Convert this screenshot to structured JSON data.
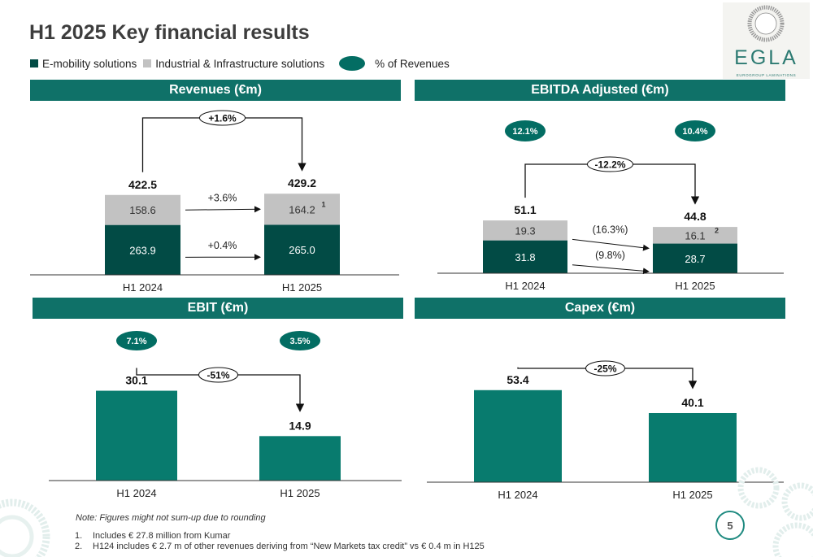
{
  "page": {
    "title": "H1 2025 Key financial results",
    "legend": {
      "emobility": "E-mobility solutions",
      "industrial": "Industrial & Infrastructure solutions",
      "pct": "% of Revenues"
    },
    "logo": {
      "text": "EGLA",
      "subtitle": "EUROGROUP LAMINATIONS"
    },
    "note": "Note: Figures might not sum-up due to rounding",
    "footnotes": [
      {
        "num": "1.",
        "text": "Includes € 27.8 million from Kumar"
      },
      {
        "num": "2.",
        "text": "H124 includes € 2.7 m of other revenues deriving from “New Markets tax credit” vs € 0.4 m in H125"
      }
    ],
    "page_number": "5",
    "colors": {
      "dark": "#024b45",
      "teal": "#087b6e",
      "grey": "#c2c2c2",
      "header": "#0f7168"
    }
  },
  "chart_data": [
    {
      "type": "bar",
      "stacked": true,
      "title": "Revenues (€m)",
      "categories": [
        "H1 2024",
        "H1 2025"
      ],
      "series": [
        {
          "name": "E-mobility solutions",
          "values": [
            263.9,
            265.0
          ],
          "labels": [
            "263.9",
            "265.0"
          ]
        },
        {
          "name": "Industrial & Infrastructure solutions",
          "values": [
            158.6,
            164.2
          ],
          "labels": [
            "158.6",
            "164.2"
          ]
        }
      ],
      "totals": [
        "422.5",
        "429.2"
      ],
      "change_total": "+1.6%",
      "change_series": [
        "+0.4%",
        "+3.6%"
      ],
      "superscripts": [
        "",
        "1"
      ],
      "ylim": [
        0,
        470
      ]
    },
    {
      "type": "bar",
      "stacked": true,
      "title": "EBITDA Adjusted (€m)",
      "categories": [
        "H1 2024",
        "H1 2025"
      ],
      "series": [
        {
          "name": "E-mobility solutions",
          "values": [
            31.8,
            28.7
          ],
          "labels": [
            "31.8",
            "28.7"
          ]
        },
        {
          "name": "Industrial & Infrastructure solutions",
          "values": [
            19.3,
            16.1
          ],
          "labels": [
            "19.3",
            "16.1"
          ]
        }
      ],
      "totals": [
        "51.1",
        "44.8"
      ],
      "change_total": "-12.2%",
      "change_series": [
        "(9.8%)",
        "(16.3%)"
      ],
      "superscripts": [
        "",
        "2"
      ],
      "pct_of_revenues": [
        "12.1%",
        "10.4%"
      ],
      "ylim": [
        0,
        80
      ]
    },
    {
      "type": "bar",
      "title": "EBIT (€m)",
      "categories": [
        "H1 2024",
        "H1 2025"
      ],
      "values": [
        30.1,
        14.9
      ],
      "labels": [
        "30.1",
        "14.9"
      ],
      "change_total": "-51%",
      "pct_of_revenues": [
        "7.1%",
        "3.5%"
      ],
      "ylim": [
        0,
        55
      ]
    },
    {
      "type": "bar",
      "title": "Capex (€m)",
      "categories": [
        "H1 2024",
        "H1 2025"
      ],
      "values": [
        53.4,
        40.1
      ],
      "labels": [
        "53.4",
        "40.1"
      ],
      "change_total": "-25%",
      "ylim": [
        0,
        105
      ]
    }
  ]
}
